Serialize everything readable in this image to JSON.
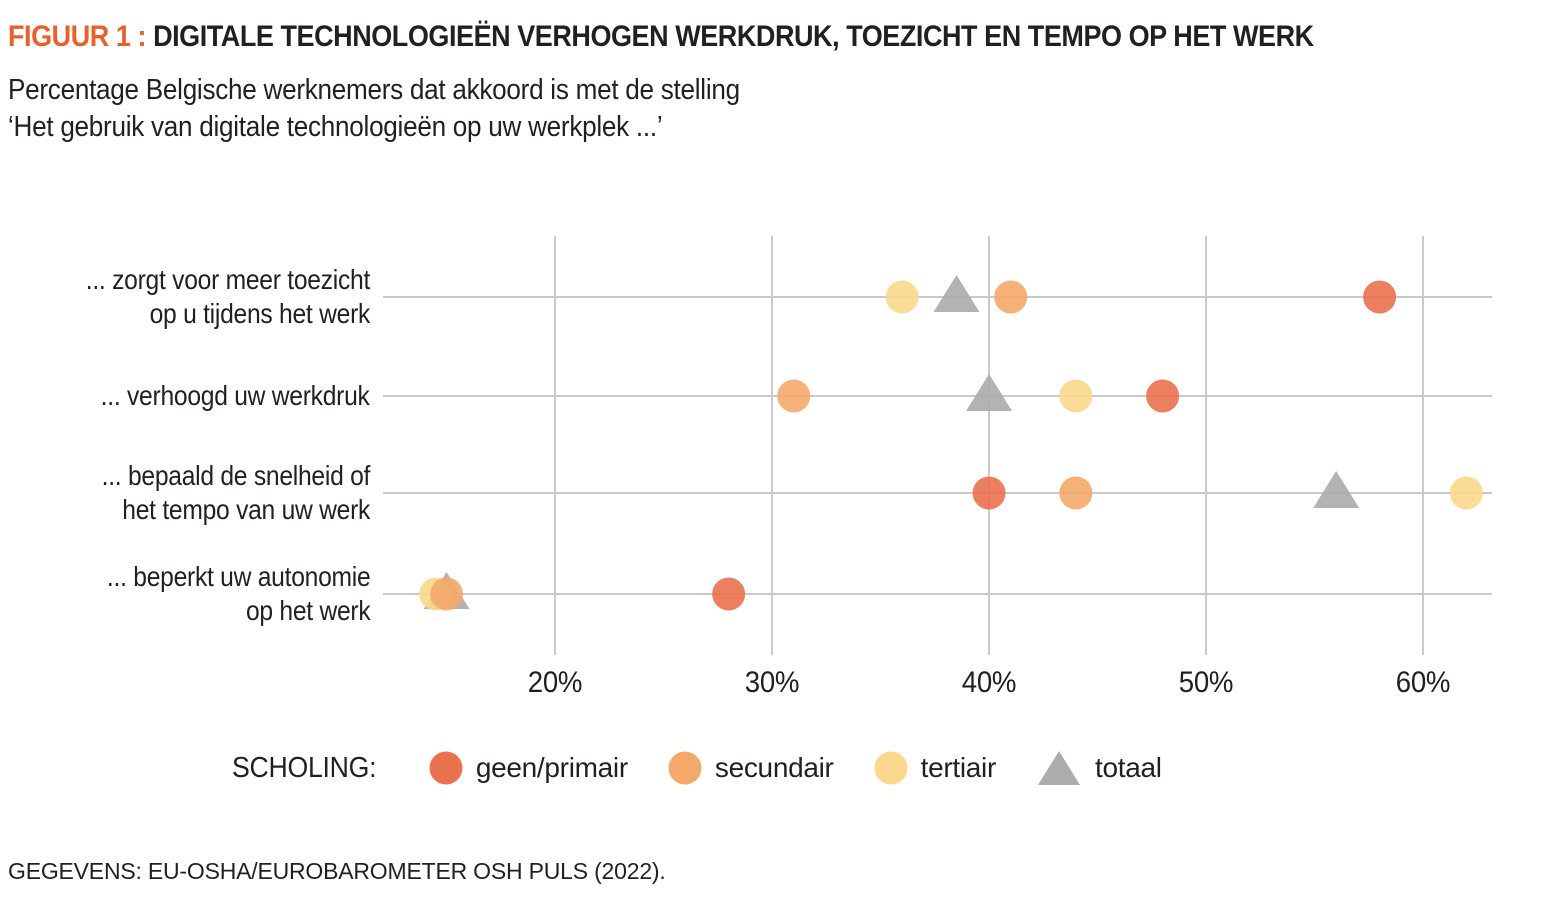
{
  "header": {
    "figure_label": "FIGUUR 1 :",
    "title": "DIGITALE TECHNOLOGIEËN VERHOGEN WERKDRUK, TOEZICHT EN TEMPO OP HET WERK",
    "subtitle_line1": "Percentage Belgische werknemers dat akkoord is met de stelling",
    "subtitle_line2": "‘Het gebruik van digitale technologieën op uw werkplek ...’"
  },
  "chart_data": {
    "type": "scatter",
    "variant": "horizontal-dot-plot",
    "title": "Percentage Belgische werknemers dat akkoord is met de stelling ‘Het gebruik van digitale technologieën op uw werkplek ...’",
    "categories": [
      "... zorgt voor meer toezicht op u tijdens het werk",
      "... verhoogd uw werkdruk",
      "... bepaald de snelheid of het tempo van uw werk",
      "... beperkt uw autonomie op het werk"
    ],
    "category_label_lines": [
      [
        "... zorgt voor meer toezicht",
        "op u tijdens het werk"
      ],
      [
        "... verhoogd uw werkdruk"
      ],
      [
        "... bepaald de snelheid of",
        "het tempo van uw werk"
      ],
      [
        "... beperkt uw autonomie",
        "op het werk"
      ]
    ],
    "series": [
      {
        "name": "geen/primair",
        "marker": "circle",
        "color": "#E9714E",
        "values": [
          58,
          48,
          40,
          28
        ]
      },
      {
        "name": "secundair",
        "marker": "circle",
        "color": "#F4A969",
        "values": [
          41,
          31,
          44,
          15
        ]
      },
      {
        "name": "tertiair",
        "marker": "circle",
        "color": "#FAD88C",
        "values": [
          36,
          44,
          62,
          14.5
        ]
      },
      {
        "name": "totaal",
        "marker": "triangle",
        "color": "#ACACAC",
        "values": [
          38.5,
          40,
          56,
          15
        ]
      }
    ],
    "xlabel": "",
    "ylabel": "",
    "x_ticks": [
      20,
      30,
      40,
      50,
      60
    ],
    "x_tick_labels": [
      "20%",
      "30%",
      "40%",
      "50%",
      "60%"
    ],
    "xlim": [
      12.07,
      63.18
    ],
    "grid": true,
    "grid_color": "#C9C9C9",
    "legend_title": "SCHOLING:",
    "legend_position": "bottom",
    "accent_color": "#E7602E",
    "text_color": "#231F20"
  },
  "footer": {
    "source": "GEGEVENS: EU-OSHA/EUROBAROMETER OSH PULS (2022)."
  }
}
